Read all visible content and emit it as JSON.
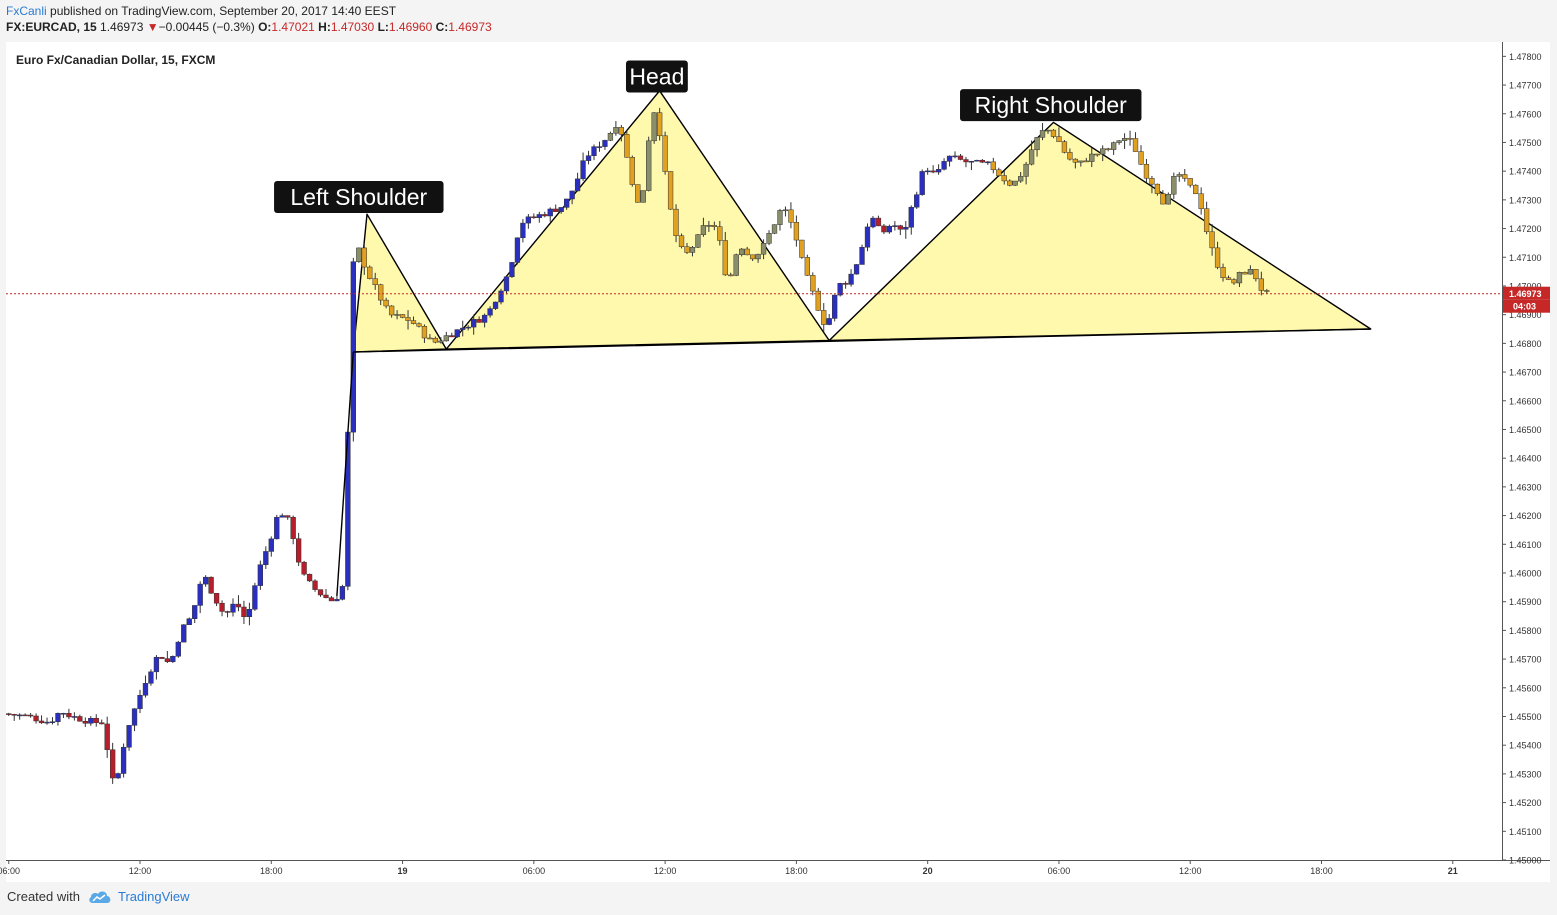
{
  "header": {
    "line1_user": "FxCanli",
    "line1_rest": " published on TradingView.com, September 20, 2017 14:40 EEST",
    "symbol": "FX:EURCAD, 15",
    "last": "1.46973",
    "arrow": "▼",
    "change": "−0.00445 (−0.3%)",
    "o_label": "O:",
    "o_value": "1.47021",
    "h_label": "H:",
    "h_value": "1.47030",
    "l_label": "L:",
    "l_value": "1.46960",
    "c_label": "C:",
    "c_value": "1.46973"
  },
  "footer": {
    "created": "Created with",
    "brand": "TradingView"
  },
  "colors": {
    "up": "#2b2fbf",
    "down": "#b51e2a",
    "pattern_fill": "#fff799",
    "price_line": "#c62828",
    "label_bg": "#111111"
  },
  "chart_data": {
    "type": "candlestick",
    "title": "Euro Fx/Canadian Dollar, 15, FXCM",
    "ylim": [
      1.45,
      1.4785
    ],
    "y_ticks": [
      "1.47800",
      "1.47700",
      "1.47600",
      "1.47500",
      "1.47400",
      "1.47300",
      "1.47200",
      "1.47100",
      "1.47000",
      "1.46900",
      "1.46800",
      "1.46700",
      "1.46600",
      "1.46500",
      "1.46400",
      "1.46300",
      "1.46200",
      "1.46100",
      "1.46000",
      "1.45900",
      "1.45800",
      "1.45700",
      "1.45600",
      "1.45500",
      "1.45400",
      "1.45300",
      "1.45200",
      "1.45100",
      "1.45000"
    ],
    "x_ticks": [
      {
        "t": 0,
        "label": "06:00"
      },
      {
        "t": 24,
        "label": "12:00"
      },
      {
        "t": 48,
        "label": "18:00"
      },
      {
        "t": 72,
        "label": "19"
      },
      {
        "t": 96,
        "label": "06:00"
      },
      {
        "t": 120,
        "label": "12:00"
      },
      {
        "t": 144,
        "label": "18:00"
      },
      {
        "t": 168,
        "label": "20"
      },
      {
        "t": 192,
        "label": "06:00"
      },
      {
        "t": 216,
        "label": "12:00"
      },
      {
        "t": 240,
        "label": "18:00"
      },
      {
        "t": 264,
        "label": "21"
      }
    ],
    "x_range": [
      -0.5,
      273
    ],
    "last_price": "1.46973",
    "countdown": "04:03",
    "key_points": [
      [
        -0.5,
        1.4551
      ],
      [
        4,
        1.455
      ],
      [
        8,
        1.4548
      ],
      [
        10,
        1.4552
      ],
      [
        12,
        1.455
      ],
      [
        16,
        1.4548
      ],
      [
        18,
        1.4548
      ],
      [
        19,
        1.453
      ],
      [
        20,
        1.4525
      ],
      [
        22,
        1.4545
      ],
      [
        24,
        1.4555
      ],
      [
        26,
        1.4565
      ],
      [
        28,
        1.4572
      ],
      [
        30,
        1.4568
      ],
      [
        32,
        1.458
      ],
      [
        34,
        1.4585
      ],
      [
        36,
        1.46
      ],
      [
        38,
        1.4592
      ],
      [
        40,
        1.4585
      ],
      [
        42,
        1.459
      ],
      [
        44,
        1.4583
      ],
      [
        46,
        1.46
      ],
      [
        48,
        1.461
      ],
      [
        50,
        1.4622
      ],
      [
        52,
        1.4617
      ],
      [
        54,
        1.46
      ],
      [
        56,
        1.4595
      ],
      [
        58,
        1.4592
      ],
      [
        60,
        1.459
      ],
      [
        62,
        1.4597
      ],
      [
        63,
        1.47
      ],
      [
        64,
        1.4715
      ],
      [
        66,
        1.4705
      ],
      [
        70,
        1.469
      ],
      [
        74,
        1.4688
      ],
      [
        76,
        1.4684
      ],
      [
        78,
        1.468
      ],
      [
        80,
        1.4682
      ],
      [
        84,
        1.4686
      ],
      [
        88,
        1.469
      ],
      [
        92,
        1.4705
      ],
      [
        94,
        1.4722
      ],
      [
        98,
        1.4725
      ],
      [
        102,
        1.4728
      ],
      [
        104,
        1.4735
      ],
      [
        106,
        1.4745
      ],
      [
        110,
        1.4752
      ],
      [
        112,
        1.4758
      ],
      [
        114,
        1.474
      ],
      [
        116,
        1.4725
      ],
      [
        118,
        1.476
      ],
      [
        119,
        1.4762
      ],
      [
        120,
        1.4745
      ],
      [
        122,
        1.472
      ],
      [
        124,
        1.471
      ],
      [
        126,
        1.4715
      ],
      [
        128,
        1.4722
      ],
      [
        130,
        1.472
      ],
      [
        132,
        1.47
      ],
      [
        134,
        1.4715
      ],
      [
        136,
        1.471
      ],
      [
        138,
        1.4712
      ],
      [
        140,
        1.472
      ],
      [
        142,
        1.4728
      ],
      [
        144,
        1.472
      ],
      [
        146,
        1.4705
      ],
      [
        148,
        1.4695
      ],
      [
        150,
        1.4685
      ],
      [
        152,
        1.47
      ],
      [
        154,
        1.4702
      ],
      [
        156,
        1.471
      ],
      [
        158,
        1.4725
      ],
      [
        160,
        1.4718
      ],
      [
        162,
        1.4722
      ],
      [
        164,
        1.4718
      ],
      [
        166,
        1.473
      ],
      [
        168,
        1.4742
      ],
      [
        170,
        1.4738
      ],
      [
        172,
        1.4745
      ],
      [
        176,
        1.4743
      ],
      [
        180,
        1.4742
      ],
      [
        182,
        1.4738
      ],
      [
        184,
        1.4735
      ],
      [
        186,
        1.474
      ],
      [
        188,
        1.475
      ],
      [
        190,
        1.4755
      ],
      [
        192,
        1.4752
      ],
      [
        194,
        1.4745
      ],
      [
        196,
        1.4742
      ],
      [
        198,
        1.4745
      ],
      [
        202,
        1.4748
      ],
      [
        204,
        1.4752
      ],
      [
        206,
        1.475
      ],
      [
        208,
        1.474
      ],
      [
        210,
        1.4735
      ],
      [
        212,
        1.4728
      ],
      [
        214,
        1.474
      ],
      [
        216,
        1.4735
      ],
      [
        218,
        1.4732
      ],
      [
        220,
        1.4715
      ],
      [
        222,
        1.4705
      ],
      [
        224,
        1.47
      ],
      [
        226,
        1.4705
      ],
      [
        228,
        1.4705
      ],
      [
        230,
        1.4697
      ]
    ],
    "pattern": {
      "left_shoulder": [
        [
          63,
          1.4677
        ],
        [
          65.5,
          1.4725
        ],
        [
          80,
          1.4678
        ]
      ],
      "head": [
        [
          80,
          1.4678
        ],
        [
          119,
          1.4768
        ],
        [
          150,
          1.4681
        ]
      ],
      "right_shoulder": [
        [
          150,
          1.4681
        ],
        [
          191,
          1.4757
        ],
        [
          249,
          1.4685
        ]
      ],
      "neckline": [
        [
          63,
          1.4677
        ],
        [
          249,
          1.4685
        ]
      ],
      "spike_line": [
        [
          60,
          1.4592
        ],
        [
          63,
          1.4677
        ]
      ]
    },
    "labels": [
      {
        "text": "Left Shoulder",
        "t": 64,
        "y": 1.4731
      },
      {
        "text": "Head",
        "t": 118.5,
        "y": 1.4773
      },
      {
        "text": "Right Shoulder",
        "t": 190.5,
        "y": 1.4763
      }
    ]
  }
}
